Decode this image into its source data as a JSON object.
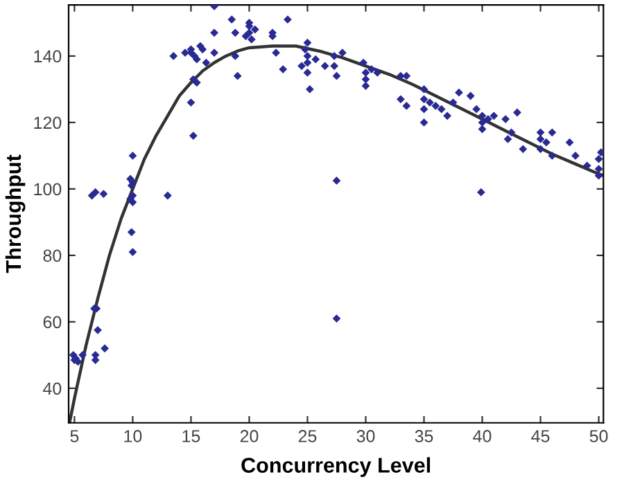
{
  "chart_data": {
    "type": "scatter",
    "xlabel": "Concurrency Level",
    "ylabel": "Throughput",
    "xlim": [
      4.5,
      50.4
    ],
    "ylim": [
      29.6,
      155.4
    ],
    "xticks": [
      5,
      10,
      15,
      20,
      25,
      30,
      35,
      40,
      45,
      50
    ],
    "yticks": [
      40,
      60,
      80,
      100,
      120,
      140
    ],
    "grid": false,
    "legend": false,
    "marker": "diamond",
    "series": [
      {
        "color": "#2a2a94",
        "x": [
          4.9,
          5,
          5.1,
          5.3,
          5.7,
          6.7,
          6.9,
          7,
          6.8,
          6.8,
          7.6,
          6.5,
          6.8,
          7.5,
          9.9,
          10,
          10,
          9.8,
          10,
          9.9,
          10,
          9.8,
          10,
          13,
          13.5,
          14.5,
          15,
          15,
          15.3,
          15.5,
          15.8,
          16,
          15.5,
          15.2,
          15,
          15.2,
          16.3,
          17,
          17,
          17,
          18.5,
          18.8,
          18.8,
          19,
          20,
          20,
          20,
          20.5,
          19.7,
          20.2,
          22,
          22,
          22.3,
          23.3,
          22.9,
          24.8,
          25,
          25,
          25,
          25,
          24.5,
          25.2,
          25.7,
          26.5,
          27.3,
          27.3,
          27.5,
          28,
          27.5,
          27.5,
          29.8,
          30,
          30,
          30,
          30.5,
          31,
          33,
          33.5,
          33,
          33.5,
          35,
          35,
          35,
          35.5,
          36,
          36.5,
          35,
          37,
          37.5,
          38,
          39.5,
          40,
          40,
          40,
          40.5,
          39,
          39.9,
          41,
          42,
          42.2,
          42.5,
          43,
          43.5,
          45,
          45,
          45,
          45.5,
          46,
          46,
          47.5,
          48,
          49,
          50,
          50,
          50,
          50.2
        ],
        "values": [
          50,
          48.5,
          49,
          48,
          50,
          64,
          64,
          57.5,
          50,
          48.5,
          52,
          98,
          99,
          98.5,
          87,
          81,
          110,
          103,
          102,
          101,
          98,
          97,
          96,
          98,
          140,
          141,
          142,
          141,
          140,
          139,
          143,
          142,
          132,
          133,
          126,
          116,
          138,
          155,
          147,
          141,
          151,
          147,
          140,
          134,
          147,
          149,
          150,
          148,
          146,
          145,
          147,
          146,
          141,
          151,
          136,
          142,
          144,
          140,
          138,
          135,
          137,
          130,
          139,
          137,
          140,
          137,
          134,
          141,
          102.5,
          61,
          138,
          135,
          133,
          131,
          136,
          135,
          134,
          134,
          127,
          125,
          130,
          127,
          124,
          126,
          125,
          124,
          120,
          122,
          126,
          129,
          124,
          122,
          120,
          118,
          121,
          128,
          99,
          122,
          121,
          115,
          117,
          123,
          112,
          117,
          115,
          112,
          114,
          110,
          117,
          114,
          110,
          107,
          109,
          106,
          104,
          111
        ]
      },
      {
        "type": "line",
        "color": "#333333",
        "line_style": "solid",
        "marker": "none",
        "x": [
          4.6,
          5,
          5.5,
          6,
          7,
          8,
          9,
          10,
          11,
          12,
          13,
          14,
          15,
          16,
          17,
          18,
          19,
          20,
          22,
          24,
          26,
          28,
          30,
          32,
          34,
          36,
          38,
          40,
          42,
          44,
          46,
          48,
          50,
          50.4
        ],
        "values": [
          30,
          37,
          45,
          53,
          67,
          80,
          91,
          100,
          109,
          116,
          122,
          128,
          132,
          135.5,
          138,
          140,
          141.5,
          142.5,
          143,
          143,
          141.5,
          139.5,
          137,
          134.5,
          131.5,
          128,
          124.5,
          121,
          117.5,
          114,
          110.5,
          107.5,
          104.5,
          104
        ]
      }
    ]
  }
}
